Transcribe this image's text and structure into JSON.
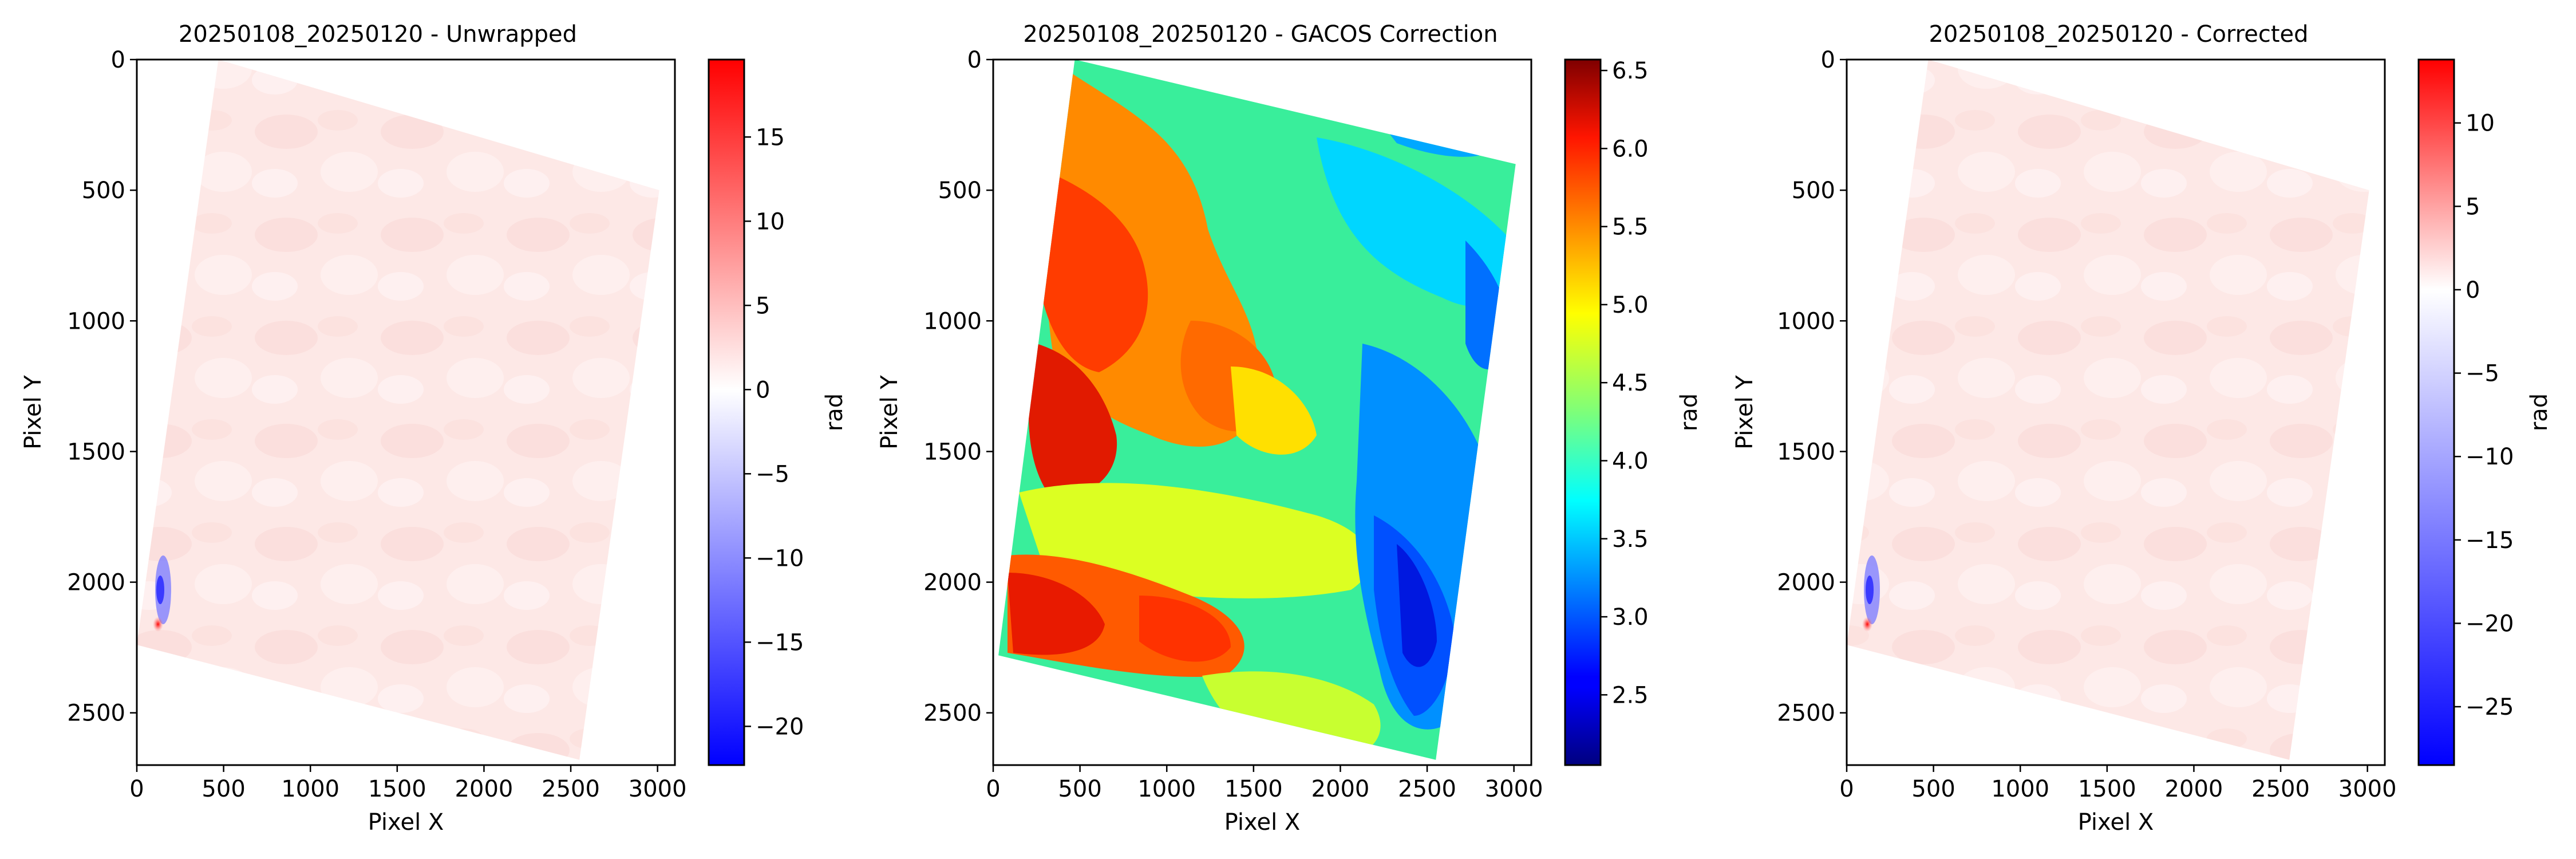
{
  "chart_data": [
    {
      "type": "heatmap",
      "title": "20250108_20250120 - Unwrapped",
      "xlabel": "Pixel X",
      "ylabel": "Pixel Y",
      "xlim": [
        0,
        3100
      ],
      "ylim": [
        2700,
        0
      ],
      "xticks": [
        0,
        500,
        1000,
        1500,
        2000,
        2500,
        3000
      ],
      "yticks": [
        0,
        500,
        1000,
        1500,
        2000,
        2500
      ],
      "footprint": [
        [
          470,
          0
        ],
        [
          3010,
          500
        ],
        [
          2550,
          2680
        ],
        [
          0,
          2240
        ]
      ],
      "colorbar": {
        "label": "rad",
        "colormap": "bwr",
        "range": [
          -22.3,
          19.6
        ],
        "ticks": [
          -20,
          -15,
          -10,
          -5,
          0,
          5,
          10,
          15
        ]
      }
    },
    {
      "type": "heatmap",
      "title": "20250108_20250120 - GACOS Correction",
      "xlabel": "Pixel X",
      "ylabel": "Pixel Y",
      "xlim": [
        0,
        3100
      ],
      "ylim": [
        2700,
        0
      ],
      "xticks": [
        0,
        500,
        1000,
        1500,
        2000,
        2500,
        3000
      ],
      "yticks": [
        0,
        500,
        1000,
        1500,
        2000,
        2500
      ],
      "footprint": [
        [
          470,
          0
        ],
        [
          3010,
          400
        ],
        [
          2550,
          2680
        ],
        [
          30,
          2280
        ]
      ],
      "colorbar": {
        "label": "rad",
        "colormap": "jet",
        "range": [
          2.05,
          6.57
        ],
        "ticks": [
          2.5,
          3.0,
          3.5,
          4.0,
          4.5,
          5.0,
          5.5,
          6.0,
          6.5
        ],
        "tick_labels": [
          "2.5",
          "3.0",
          "3.5",
          "4.0",
          "4.5",
          "5.0",
          "5.5",
          "6.0",
          "6.5"
        ]
      }
    },
    {
      "type": "heatmap",
      "title": "20250108_20250120 - Corrected",
      "xlabel": "Pixel X",
      "ylabel": "Pixel Y",
      "xlim": [
        0,
        3100
      ],
      "ylim": [
        2700,
        0
      ],
      "xticks": [
        0,
        500,
        1000,
        1500,
        2000,
        2500,
        3000
      ],
      "yticks": [
        0,
        500,
        1000,
        1500,
        2000,
        2500
      ],
      "footprint": [
        [
          470,
          0
        ],
        [
          3010,
          500
        ],
        [
          2550,
          2680
        ],
        [
          0,
          2240
        ]
      ],
      "colorbar": {
        "label": "rad",
        "colormap": "bwr",
        "range": [
          -28.5,
          13.8
        ],
        "ticks": [
          -25,
          -20,
          -15,
          -10,
          -5,
          0,
          5,
          10
        ]
      }
    }
  ]
}
